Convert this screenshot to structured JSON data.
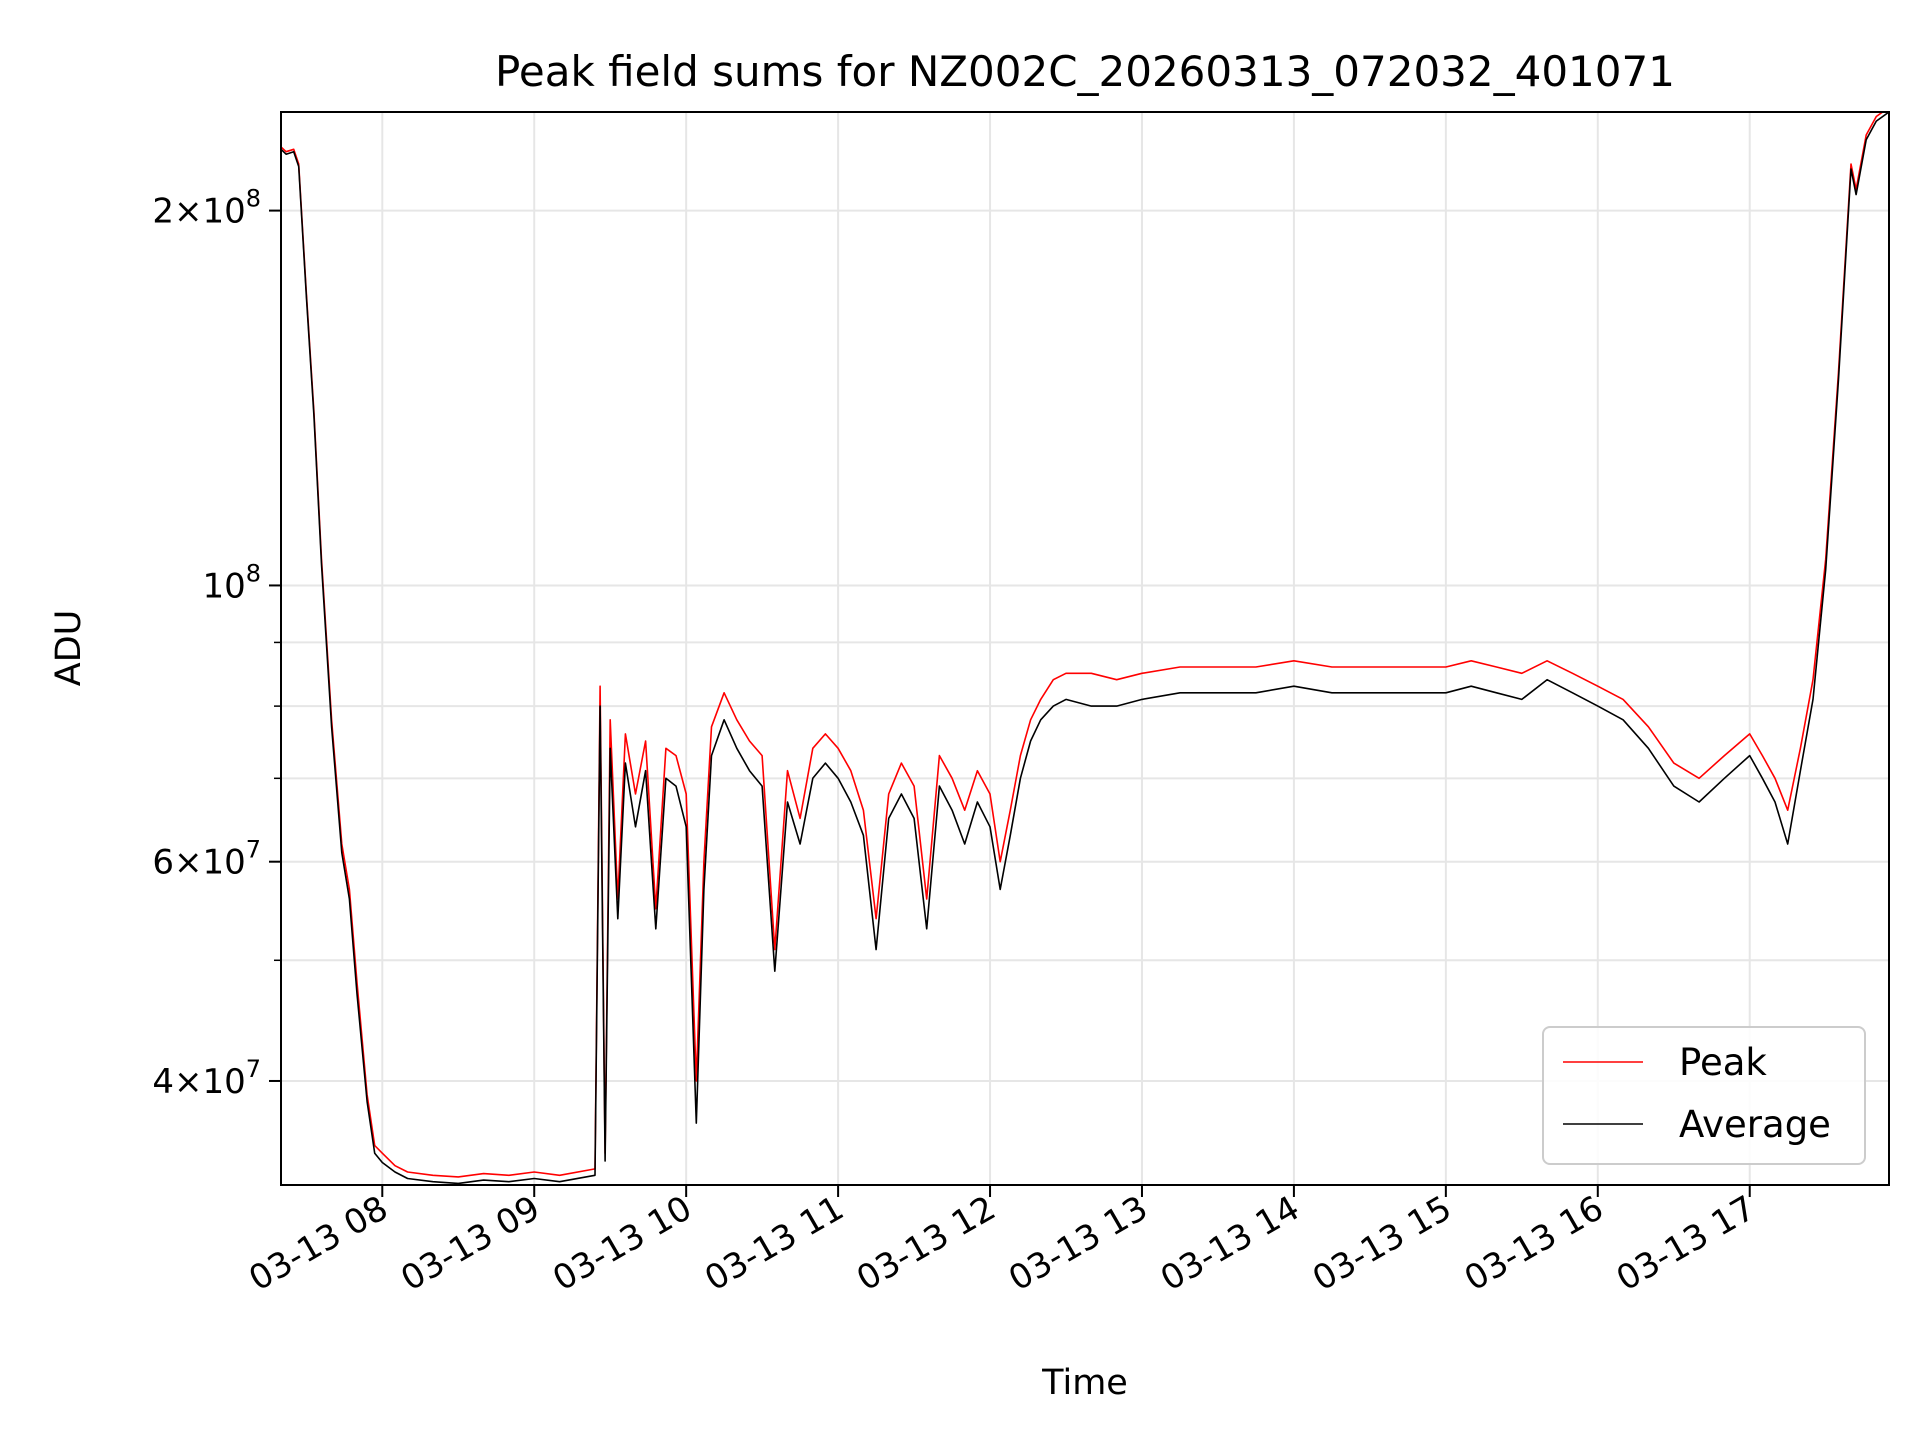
{
  "chart_data": {
    "type": "line",
    "title": "Peak field sums for NZ002C_20260313_072032_401071",
    "xlabel": "Time",
    "ylabel": "ADU",
    "y_scale": "log",
    "grid": true,
    "legend_position": "lower-right",
    "xlim": [
      "2026-03-13 07:20",
      "2026-03-13 17:55"
    ],
    "ylim": [
      33000000,
      240000000
    ],
    "x_ticks": [
      "03-13 08",
      "03-13 09",
      "03-13 10",
      "03-13 11",
      "03-13 12",
      "03-13 13",
      "03-13 14",
      "03-13 15",
      "03-13 16",
      "03-13 17"
    ],
    "y_tick_labels": [
      {
        "value": 200000000,
        "mantissa": "2",
        "exponent": "8"
      },
      {
        "value": 100000000,
        "mantissa": "",
        "exponent": "8"
      },
      {
        "value": 60000000,
        "mantissa": "6",
        "exponent": "7"
      },
      {
        "value": 40000000,
        "mantissa": "4",
        "exponent": "7"
      }
    ],
    "y_minor_ticks": [
      30000000,
      50000000,
      70000000,
      80000000,
      90000000
    ],
    "series": [
      {
        "name": "Peak",
        "color": "#ff0000",
        "points": [
          [
            "07:20",
            225000000.0
          ],
          [
            "07:22",
            223000000.0
          ],
          [
            "07:25",
            224000000.0
          ],
          [
            "07:27",
            218000000.0
          ],
          [
            "07:30",
            172000000.0
          ],
          [
            "07:33",
            138000000.0
          ],
          [
            "07:36",
            105000000.0
          ],
          [
            "07:40",
            78000000.0
          ],
          [
            "07:44",
            62000000.0
          ],
          [
            "07:47",
            57000000.0
          ],
          [
            "07:50",
            48000000.0
          ],
          [
            "07:54",
            39000000.0
          ],
          [
            "07:57",
            35500000.0
          ],
          [
            "08:00",
            35000000.0
          ],
          [
            "08:05",
            34200000.0
          ],
          [
            "08:10",
            33800000.0
          ],
          [
            "08:20",
            33600000.0
          ],
          [
            "08:30",
            33500000.0
          ],
          [
            "08:40",
            33700000.0
          ],
          [
            "08:50",
            33600000.0
          ],
          [
            "09:00",
            33800000.0
          ],
          [
            "09:10",
            33600000.0
          ],
          [
            "09:24",
            34000000.0
          ],
          [
            "09:26",
            83000000.0
          ],
          [
            "09:28",
            35000000.0
          ],
          [
            "09:30",
            78000000.0
          ],
          [
            "09:33",
            56000000.0
          ],
          [
            "09:36",
            76000000.0
          ],
          [
            "09:40",
            68000000.0
          ],
          [
            "09:44",
            75000000.0
          ],
          [
            "09:48",
            55000000.0
          ],
          [
            "09:52",
            74000000.0
          ],
          [
            "09:56",
            73000000.0
          ],
          [
            "10:00",
            68000000.0
          ],
          [
            "10:04",
            40000000.0
          ],
          [
            "10:07",
            60000000.0
          ],
          [
            "10:10",
            77000000.0
          ],
          [
            "10:15",
            82000000.0
          ],
          [
            "10:20",
            78000000.0
          ],
          [
            "10:25",
            75000000.0
          ],
          [
            "10:30",
            73000000.0
          ],
          [
            "10:35",
            51000000.0
          ],
          [
            "10:40",
            71000000.0
          ],
          [
            "10:45",
            65000000.0
          ],
          [
            "10:50",
            74000000.0
          ],
          [
            "10:55",
            76000000.0
          ],
          [
            "11:00",
            74000000.0
          ],
          [
            "11:05",
            71000000.0
          ],
          [
            "11:10",
            66000000.0
          ],
          [
            "11:15",
            54000000.0
          ],
          [
            "11:20",
            68000000.0
          ],
          [
            "11:25",
            72000000.0
          ],
          [
            "11:30",
            69000000.0
          ],
          [
            "11:35",
            56000000.0
          ],
          [
            "11:40",
            73000000.0
          ],
          [
            "11:45",
            70000000.0
          ],
          [
            "11:50",
            66000000.0
          ],
          [
            "11:55",
            71000000.0
          ],
          [
            "12:00",
            68000000.0
          ],
          [
            "12:04",
            60000000.0
          ],
          [
            "12:08",
            66000000.0
          ],
          [
            "12:12",
            73000000.0
          ],
          [
            "12:16",
            78000000.0
          ],
          [
            "12:20",
            81000000.0
          ],
          [
            "12:25",
            84000000.0
          ],
          [
            "12:30",
            85000000.0
          ],
          [
            "12:40",
            85000000.0
          ],
          [
            "12:50",
            84000000.0
          ],
          [
            "13:00",
            85000000.0
          ],
          [
            "13:15",
            86000000.0
          ],
          [
            "13:30",
            86000000.0
          ],
          [
            "13:45",
            86000000.0
          ],
          [
            "14:00",
            87000000.0
          ],
          [
            "14:15",
            86000000.0
          ],
          [
            "14:30",
            86000000.0
          ],
          [
            "14:45",
            86000000.0
          ],
          [
            "15:00",
            86000000.0
          ],
          [
            "15:10",
            87000000.0
          ],
          [
            "15:20",
            86000000.0
          ],
          [
            "15:30",
            85000000.0
          ],
          [
            "15:40",
            87000000.0
          ],
          [
            "15:50",
            85000000.0
          ],
          [
            "16:00",
            83000000.0
          ],
          [
            "16:10",
            81000000.0
          ],
          [
            "16:20",
            77000000.0
          ],
          [
            "16:30",
            72000000.0
          ],
          [
            "16:40",
            70000000.0
          ],
          [
            "16:50",
            73000000.0
          ],
          [
            "17:00",
            76000000.0
          ],
          [
            "17:05",
            73000000.0
          ],
          [
            "17:10",
            70000000.0
          ],
          [
            "17:15",
            66000000.0
          ],
          [
            "17:20",
            74000000.0
          ],
          [
            "17:25",
            84000000.0
          ],
          [
            "17:30",
            105000000.0
          ],
          [
            "17:35",
            148000000.0
          ],
          [
            "17:40",
            218000000.0
          ],
          [
            "17:42",
            208000000.0
          ],
          [
            "17:46",
            230000000.0
          ],
          [
            "17:50",
            238000000.0
          ],
          [
            "17:55",
            242000000.0
          ]
        ]
      },
      {
        "name": "Average",
        "color": "#000000",
        "points": [
          [
            "07:20",
            224000000.0
          ],
          [
            "07:22",
            222000000.0
          ],
          [
            "07:25",
            223000000.0
          ],
          [
            "07:27",
            217000000.0
          ],
          [
            "07:30",
            171000000.0
          ],
          [
            "07:33",
            137000000.0
          ],
          [
            "07:36",
            104000000.0
          ],
          [
            "07:40",
            77000000.0
          ],
          [
            "07:44",
            61000000.0
          ],
          [
            "07:47",
            56000000.0
          ],
          [
            "07:50",
            47000000.0
          ],
          [
            "07:54",
            38500000.0
          ],
          [
            "07:57",
            35000000.0
          ],
          [
            "08:00",
            34400000.0
          ],
          [
            "08:05",
            33800000.0
          ],
          [
            "08:10",
            33400000.0
          ],
          [
            "08:20",
            33200000.0
          ],
          [
            "08:30",
            33100000.0
          ],
          [
            "08:40",
            33300000.0
          ],
          [
            "08:50",
            33200000.0
          ],
          [
            "09:00",
            33400000.0
          ],
          [
            "09:10",
            33200000.0
          ],
          [
            "09:24",
            33600000.0
          ],
          [
            "09:26",
            80000000.0
          ],
          [
            "09:28",
            34500000.0
          ],
          [
            "09:30",
            74000000.0
          ],
          [
            "09:33",
            54000000.0
          ],
          [
            "09:36",
            72000000.0
          ],
          [
            "09:40",
            64000000.0
          ],
          [
            "09:44",
            71000000.0
          ],
          [
            "09:48",
            53000000.0
          ],
          [
            "09:52",
            70000000.0
          ],
          [
            "09:56",
            69000000.0
          ],
          [
            "10:00",
            64000000.0
          ],
          [
            "10:04",
            37000000.0
          ],
          [
            "10:07",
            57000000.0
          ],
          [
            "10:10",
            73000000.0
          ],
          [
            "10:15",
            78000000.0
          ],
          [
            "10:20",
            74000000.0
          ],
          [
            "10:25",
            71000000.0
          ],
          [
            "10:30",
            69000000.0
          ],
          [
            "10:35",
            49000000.0
          ],
          [
            "10:40",
            67000000.0
          ],
          [
            "10:45",
            62000000.0
          ],
          [
            "10:50",
            70000000.0
          ],
          [
            "10:55",
            72000000.0
          ],
          [
            "11:00",
            70000000.0
          ],
          [
            "11:05",
            67000000.0
          ],
          [
            "11:10",
            63000000.0
          ],
          [
            "11:15",
            51000000.0
          ],
          [
            "11:20",
            65000000.0
          ],
          [
            "11:25",
            68000000.0
          ],
          [
            "11:30",
            65000000.0
          ],
          [
            "11:35",
            53000000.0
          ],
          [
            "11:40",
            69000000.0
          ],
          [
            "11:45",
            66000000.0
          ],
          [
            "11:50",
            62000000.0
          ],
          [
            "11:55",
            67000000.0
          ],
          [
            "12:00",
            64000000.0
          ],
          [
            "12:04",
            57000000.0
          ],
          [
            "12:08",
            63000000.0
          ],
          [
            "12:12",
            70000000.0
          ],
          [
            "12:16",
            75000000.0
          ],
          [
            "12:20",
            78000000.0
          ],
          [
            "12:25",
            80000000.0
          ],
          [
            "12:30",
            81000000.0
          ],
          [
            "12:40",
            80000000.0
          ],
          [
            "12:50",
            80000000.0
          ],
          [
            "13:00",
            81000000.0
          ],
          [
            "13:15",
            82000000.0
          ],
          [
            "13:30",
            82000000.0
          ],
          [
            "13:45",
            82000000.0
          ],
          [
            "14:00",
            83000000.0
          ],
          [
            "14:15",
            82000000.0
          ],
          [
            "14:30",
            82000000.0
          ],
          [
            "14:45",
            82000000.0
          ],
          [
            "15:00",
            82000000.0
          ],
          [
            "15:10",
            83000000.0
          ],
          [
            "15:20",
            82000000.0
          ],
          [
            "15:30",
            81000000.0
          ],
          [
            "15:40",
            84000000.0
          ],
          [
            "15:50",
            82000000.0
          ],
          [
            "16:00",
            80000000.0
          ],
          [
            "16:10",
            78000000.0
          ],
          [
            "16:20",
            74000000.0
          ],
          [
            "16:30",
            69000000.0
          ],
          [
            "16:40",
            67000000.0
          ],
          [
            "16:50",
            70000000.0
          ],
          [
            "17:00",
            73000000.0
          ],
          [
            "17:05",
            70000000.0
          ],
          [
            "17:10",
            67000000.0
          ],
          [
            "17:15",
            62000000.0
          ],
          [
            "17:20",
            71000000.0
          ],
          [
            "17:25",
            81000000.0
          ],
          [
            "17:30",
            103000000.0
          ],
          [
            "17:35",
            146000000.0
          ],
          [
            "17:40",
            216000000.0
          ],
          [
            "17:42",
            206000000.0
          ],
          [
            "17:46",
            228000000.0
          ],
          [
            "17:50",
            236000000.0
          ],
          [
            "17:55",
            240000000.0
          ]
        ]
      }
    ]
  }
}
